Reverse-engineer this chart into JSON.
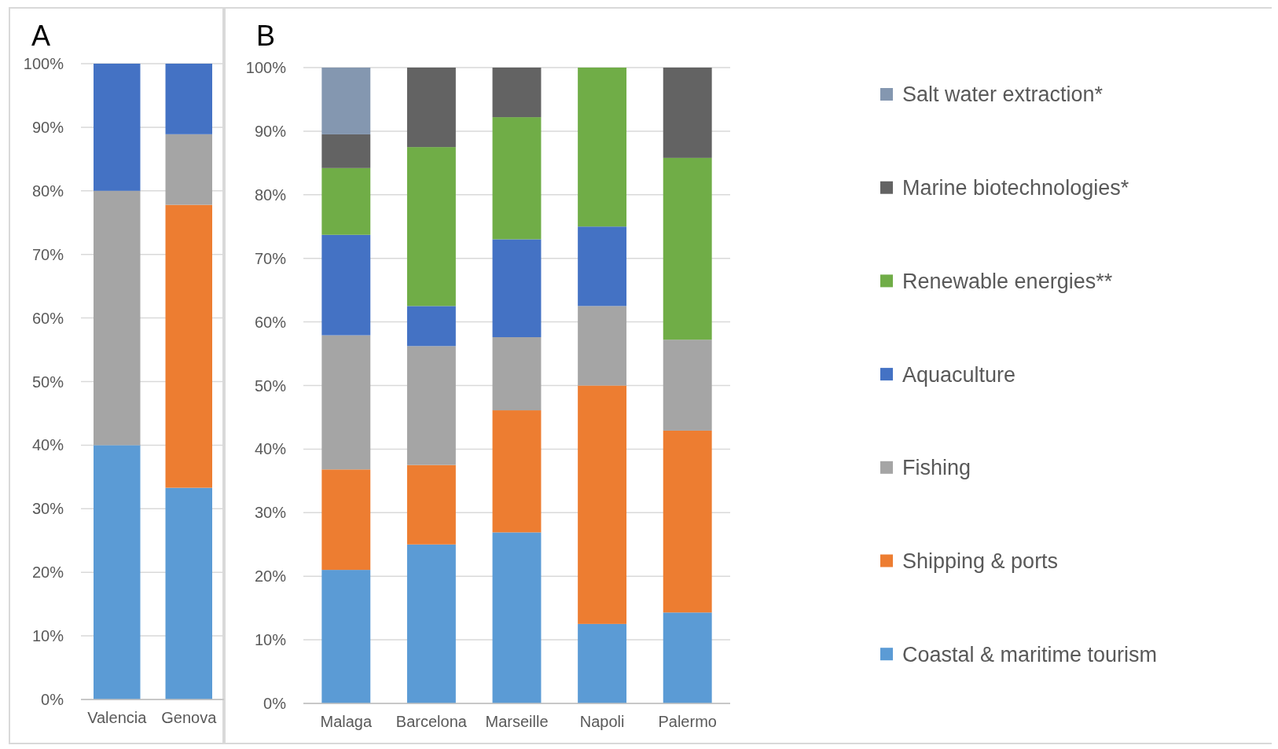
{
  "chart_data": [
    {
      "type": "bar",
      "title": "A",
      "stacked": true,
      "categories": [
        "Valencia",
        "Genova"
      ],
      "ylim": [
        0,
        100
      ],
      "yticks": [
        {
          "value": 0,
          "label": "0%"
        },
        {
          "value": 10,
          "label": "10%"
        },
        {
          "value": 20,
          "label": "20%"
        },
        {
          "value": 30,
          "label": "30%"
        },
        {
          "value": 40,
          "label": "40%"
        },
        {
          "value": 50,
          "label": "50%"
        },
        {
          "value": 60,
          "label": "60%"
        },
        {
          "value": 70,
          "label": "70%"
        },
        {
          "value": 80,
          "label": "80%"
        },
        {
          "value": 90,
          "label": "90%"
        },
        {
          "value": 100,
          "label": "100%"
        }
      ],
      "grid": "y",
      "series": [
        {
          "color": "#5b9bd5",
          "values": [
            40,
            33.3
          ]
        },
        {
          "color": "#ed7d31",
          "values": [
            0,
            44.5
          ]
        },
        {
          "color": "#a5a5a5",
          "values": [
            40,
            11.1
          ]
        },
        {
          "color": "#4472c4",
          "values": [
            20,
            11.1
          ]
        }
      ]
    },
    {
      "type": "bar",
      "title": "B",
      "stacked": true,
      "categories": [
        "Malaga",
        "Barcelona",
        "Marseille",
        "Napoli",
        "Palermo"
      ],
      "ylim": [
        0,
        100
      ],
      "yticks": [
        {
          "value": 0,
          "label": "0%"
        },
        {
          "value": 10,
          "label": "10%"
        },
        {
          "value": 20,
          "label": "20%"
        },
        {
          "value": 30,
          "label": "30%"
        },
        {
          "value": 40,
          "label": "40%"
        },
        {
          "value": 50,
          "label": "50%"
        },
        {
          "value": 60,
          "label": "60%"
        },
        {
          "value": 70,
          "label": "70%"
        },
        {
          "value": 80,
          "label": "80%"
        },
        {
          "value": 90,
          "label": "90%"
        },
        {
          "value": 100,
          "label": "100%"
        }
      ],
      "grid": "y",
      "legend": "right",
      "series": [
        {
          "name": "Coastal & maritime tourism",
          "color": "#5b9bd5",
          "values": [
            21,
            25,
            26.9,
            12.5,
            14.3
          ]
        },
        {
          "name": "Shipping & ports",
          "color": "#ed7d31",
          "values": [
            15.8,
            12.5,
            19.2,
            37.5,
            28.6
          ]
        },
        {
          "name": "Fishing",
          "color": "#a5a5a5",
          "values": [
            21.1,
            18.7,
            11.5,
            12.5,
            14.3
          ]
        },
        {
          "name": "Aquaculture",
          "color": "#4472c4",
          "values": [
            15.8,
            6.3,
            15.4,
            12.5,
            0
          ]
        },
        {
          "name": "Renewable energies**",
          "color": "#70ad47",
          "values": [
            10.5,
            25,
            19.2,
            25,
            28.6
          ]
        },
        {
          "name": "Marine biotechnologies*",
          "color": "#636363",
          "values": [
            5.3,
            12.5,
            7.8,
            0,
            14.2
          ]
        },
        {
          "name": "Salt water extraction*",
          "color": "#8497b0",
          "values": [
            10.5,
            0,
            0,
            0,
            0
          ]
        }
      ]
    }
  ]
}
